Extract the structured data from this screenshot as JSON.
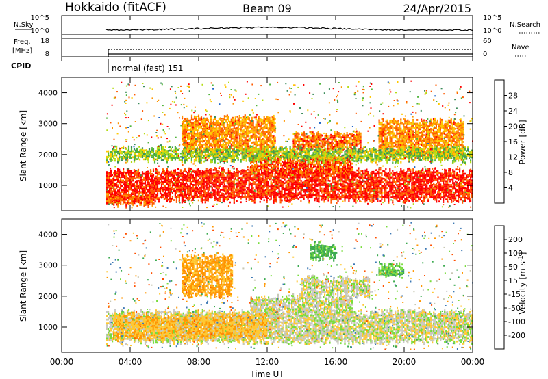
{
  "header": {
    "station": "Hokkaido (fitACF)",
    "beam": "Beam 09",
    "date": "24/Apr/2015"
  },
  "strips": {
    "nsky_label": "N.Sky",
    "nsky_ticks": [
      "10^5",
      "10^0"
    ],
    "nsearch_label": "N.Search",
    "nsearch_ticks": [
      "10^5",
      "10^0"
    ],
    "freq_label_1": "Freq.",
    "freq_label_2": "[MHz]",
    "freq_ticks": [
      "18",
      "8"
    ],
    "nave_label": "Nave",
    "nave_ticks": [
      "60",
      "0"
    ],
    "cpid_label": "CPID",
    "cpid_value": "normal (fast) 151"
  },
  "x_axis": {
    "label": "Time UT",
    "ticks": [
      "00:00",
      "04:00",
      "08:00",
      "12:00",
      "16:00",
      "20:00",
      "00:00"
    ]
  },
  "colors": {
    "power_scale": [
      "#0000ff",
      "#1e64c8",
      "#3c8c5a",
      "#50b43c",
      "#b4dc14",
      "#ffc800",
      "#ff9600",
      "#ff5a00",
      "#ff0000"
    ],
    "velocity_scale": [
      "#ff0000",
      "#ff5000",
      "#ff9600",
      "#ffc832",
      "#c8c8b4",
      "#c8c8c8",
      "#78dc3c",
      "#3caa50",
      "#3c78b4",
      "#2828c8"
    ],
    "ground_scatter": "#bebebe"
  },
  "chart_data": [
    {
      "type": "heatmap",
      "panel": "power",
      "xlabel": "Time UT",
      "ylabel": "Slant Range [km]",
      "xlim": [
        0,
        24
      ],
      "ylim": [
        180,
        4500
      ],
      "yticks": [
        "1000",
        "2000",
        "3000",
        "4000"
      ],
      "colorbar_label": "Power [dB]",
      "colorbar_ticks": [
        "4",
        "8",
        "12",
        "16",
        "20",
        "24",
        "28"
      ],
      "colorbar_range": [
        0,
        30
      ],
      "regions": [
        {
          "t_start": 2.6,
          "t_end": 24.0,
          "range_low": 500,
          "range_high": 1500,
          "power_db": 28
        },
        {
          "t_start": 11.0,
          "t_end": 17.0,
          "range_low": 1400,
          "range_high": 2000,
          "power_db": 26
        },
        {
          "t_start": 7.0,
          "t_end": 12.5,
          "range_low": 2000,
          "range_high": 3200,
          "power_db": 22
        },
        {
          "t_start": 13.5,
          "t_end": 17.5,
          "range_low": 2100,
          "range_high": 2700,
          "power_db": 24
        },
        {
          "t_start": 18.5,
          "t_end": 23.5,
          "range_low": 1900,
          "range_high": 3100,
          "power_db": 22
        },
        {
          "t_start": 2.6,
          "t_end": 24.0,
          "range_low": 1800,
          "range_high": 2200,
          "power_db": 14
        },
        {
          "t_start": 2.6,
          "t_end": 5.5,
          "range_low": 350,
          "range_high": 700,
          "power_db": 26
        }
      ]
    },
    {
      "type": "heatmap",
      "panel": "velocity",
      "xlabel": "Time UT",
      "ylabel": "Slant Range [km]",
      "xlim": [
        0,
        24
      ],
      "ylim": [
        180,
        4500
      ],
      "yticks": [
        "1000",
        "2000",
        "3000",
        "4000"
      ],
      "colorbar_label": "Velocity [m s^-1]",
      "colorbar_ticks": [
        "-200",
        "-100",
        "-50",
        "-15",
        "15",
        "50",
        "100",
        "200"
      ],
      "colorbar_range": [
        -250,
        250
      ],
      "regions": [
        {
          "t_start": 2.6,
          "t_end": 24.0,
          "range_low": 500,
          "range_high": 1500,
          "velocity": 0
        },
        {
          "t_start": 11.0,
          "t_end": 17.0,
          "range_low": 1400,
          "range_high": 2000,
          "velocity": 0
        },
        {
          "t_start": 14.0,
          "t_end": 18.0,
          "range_low": 2000,
          "range_high": 2600,
          "velocity": 0
        },
        {
          "t_start": 7.0,
          "t_end": 10.0,
          "range_low": 2000,
          "range_high": 3300,
          "velocity": -60
        },
        {
          "t_start": 3.0,
          "t_end": 12.0,
          "range_low": 600,
          "range_high": 1400,
          "velocity": -40
        },
        {
          "t_start": 18.5,
          "t_end": 20.0,
          "range_low": 2600,
          "range_high": 3000,
          "velocity": 45
        },
        {
          "t_start": 14.5,
          "t_end": 16.0,
          "range_low": 3200,
          "range_high": 3700,
          "velocity": 60
        }
      ]
    }
  ]
}
